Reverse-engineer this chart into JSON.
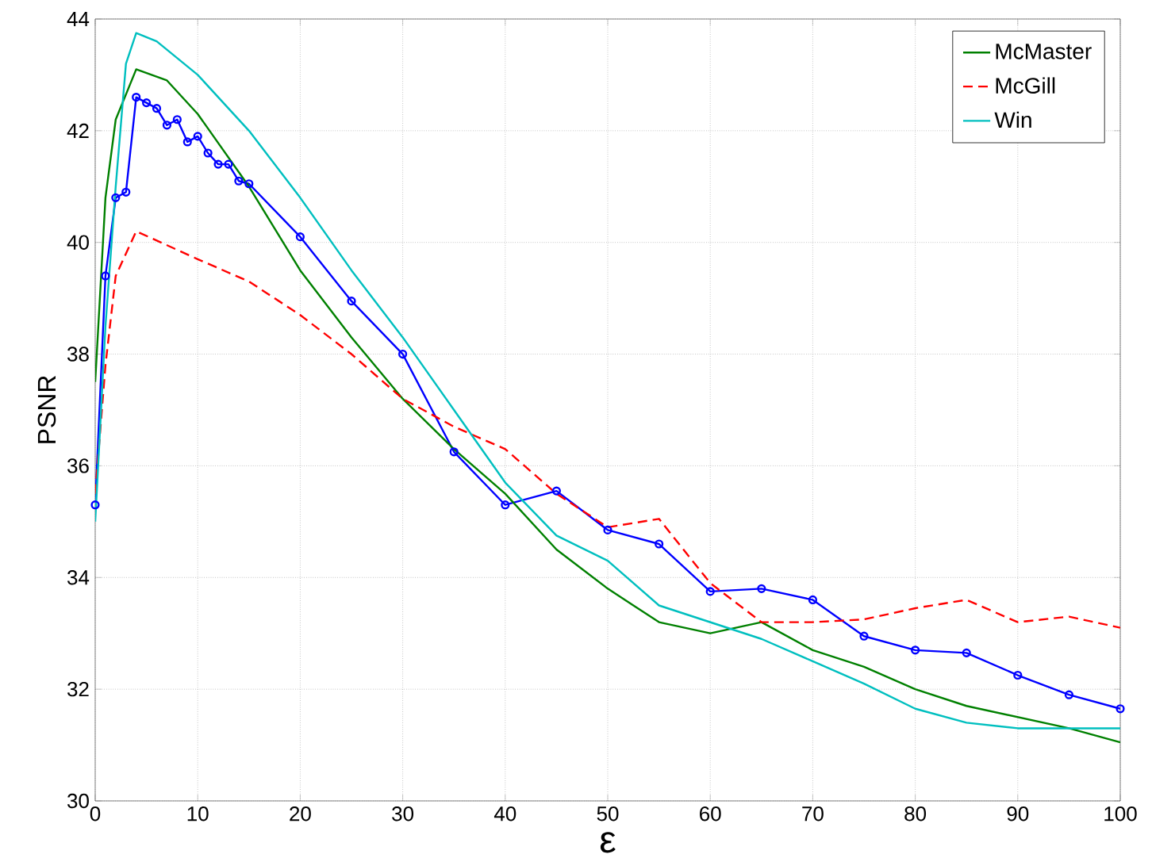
{
  "chart_data": {
    "type": "line",
    "xlabel": "ε",
    "ylabel": "PSNR",
    "xlim": [
      0,
      100
    ],
    "ylim": [
      30,
      44
    ],
    "xticks": [
      0,
      10,
      20,
      30,
      40,
      50,
      60,
      70,
      80,
      90,
      100
    ],
    "yticks": [
      30,
      32,
      34,
      36,
      38,
      40,
      42,
      44
    ],
    "grid": true,
    "legend": "top right",
    "series": [
      {
        "color": "#0000ff",
        "marker": "circle",
        "line_style": "solid",
        "x": [
          0,
          1,
          2,
          3,
          4,
          5,
          6,
          7,
          8,
          9,
          10,
          11,
          12,
          13,
          14,
          15,
          20,
          25,
          30,
          35,
          40,
          45,
          50,
          55,
          60,
          65,
          70,
          75,
          80,
          85,
          90,
          95,
          100
        ],
        "values": [
          35.3,
          39.4,
          40.8,
          40.9,
          42.6,
          42.5,
          42.4,
          42.1,
          42.2,
          41.8,
          41.9,
          41.6,
          41.4,
          41.4,
          41.1,
          41.05,
          40.1,
          38.95,
          38.0,
          36.25,
          35.3,
          35.55,
          34.85,
          34.6,
          33.75,
          33.8,
          33.6,
          32.95,
          32.7,
          32.65,
          32.25,
          31.9,
          31.65
        ]
      },
      {
        "name": "McMaster",
        "color": "#008000",
        "marker": "none",
        "line_style": "solid",
        "x": [
          0,
          1,
          2,
          4,
          7,
          10,
          15,
          20,
          25,
          30,
          35,
          40,
          45,
          50,
          55,
          60,
          65,
          70,
          75,
          80,
          85,
          90,
          95,
          100
        ],
        "values": [
          37.5,
          40.8,
          42.2,
          43.1,
          42.9,
          42.3,
          41.0,
          39.5,
          38.3,
          37.2,
          36.3,
          35.5,
          34.5,
          33.8,
          33.2,
          33.0,
          33.2,
          32.7,
          32.4,
          32.0,
          31.7,
          31.5,
          31.3,
          31.05
        ]
      },
      {
        "name": "McGill",
        "color": "#ff0000",
        "marker": "none",
        "line_style": "dashed",
        "x": [
          0,
          1,
          2,
          4,
          10,
          15,
          20,
          25,
          30,
          35,
          40,
          45,
          50,
          55,
          60,
          65,
          70,
          75,
          80,
          85,
          90,
          95,
          100
        ],
        "values": [
          35.5,
          37.8,
          39.4,
          40.2,
          39.7,
          39.3,
          38.7,
          38.0,
          37.2,
          36.7,
          36.3,
          35.5,
          34.9,
          35.05,
          33.9,
          33.2,
          33.2,
          33.25,
          33.45,
          33.6,
          33.2,
          33.3,
          33.1
        ]
      },
      {
        "name": "Win",
        "color": "#00bfbf",
        "marker": "none",
        "line_style": "solid",
        "x": [
          0,
          1,
          2,
          3,
          4,
          6,
          10,
          15,
          20,
          25,
          30,
          35,
          40,
          45,
          50,
          55,
          60,
          65,
          70,
          75,
          80,
          85,
          90,
          95,
          100
        ],
        "values": [
          35.0,
          38.5,
          41.0,
          43.2,
          43.75,
          43.6,
          43.0,
          42.0,
          40.8,
          39.5,
          38.3,
          37.0,
          35.7,
          34.75,
          34.3,
          33.5,
          33.2,
          32.9,
          32.5,
          32.1,
          31.65,
          31.4,
          31.3,
          31.3,
          31.3
        ]
      }
    ]
  }
}
